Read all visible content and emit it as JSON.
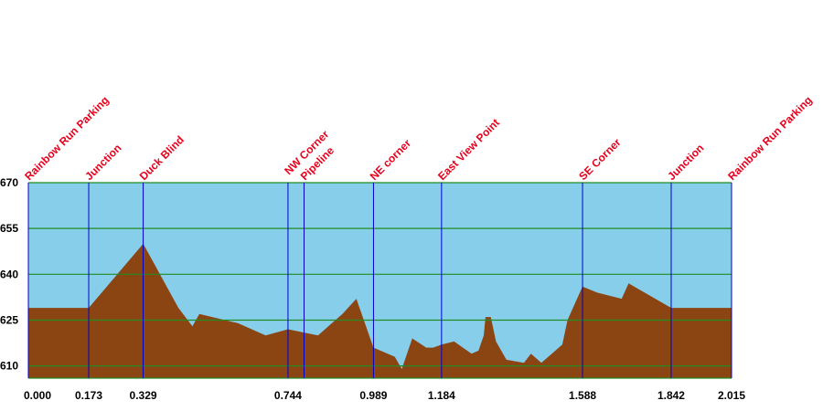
{
  "chart_data": {
    "type": "area",
    "title": "",
    "xlabel": "",
    "ylabel": "",
    "xlim": [
      0,
      2.015
    ],
    "ylim": [
      606,
      670
    ],
    "x_ticks": [
      "0.000",
      "0.173",
      "0.329",
      "0.744",
      "0.989",
      "1.184",
      "1.588",
      "1.842",
      "2.015"
    ],
    "y_ticks": [
      "670",
      "655",
      "640",
      "625",
      "610"
    ],
    "grid": "horizontal",
    "colors": {
      "sky": "#87ceeb",
      "terrain": "#8b4513",
      "gridline": "#228b22",
      "waypoint_line": "#0000cc",
      "waypoint_label": "#e8001c"
    },
    "waypoints": [
      {
        "name": "Rainbow Run Parking",
        "x": 0.0
      },
      {
        "name": "Junction",
        "x": 0.173
      },
      {
        "name": "Duck Blind",
        "x": 0.329
      },
      {
        "name": "NW Corner",
        "x": 0.744
      },
      {
        "name": "Pipeline",
        "x": 0.79
      },
      {
        "name": "NE corner",
        "x": 0.989
      },
      {
        "name": "East View Point",
        "x": 1.184
      },
      {
        "name": "SE Corner",
        "x": 1.588
      },
      {
        "name": "Junction",
        "x": 1.842
      },
      {
        "name": "Rainbow Run Parking",
        "x": 2.015
      }
    ],
    "series": [
      {
        "x": [
          0.0,
          0.173,
          0.329,
          0.43,
          0.47,
          0.49,
          0.6,
          0.68,
          0.744,
          0.83,
          0.87,
          0.9,
          0.94,
          0.989,
          1.05,
          1.07,
          1.1,
          1.14,
          1.16,
          1.184,
          1.22,
          1.27,
          1.29,
          1.305,
          1.31,
          1.325,
          1.34,
          1.37,
          1.42,
          1.44,
          1.47,
          1.5,
          1.53,
          1.545,
          1.588,
          1.63,
          1.7,
          1.72,
          1.842,
          2.015
        ],
        "y": [
          629,
          629,
          650,
          629,
          623,
          627,
          624,
          620,
          622,
          620,
          624,
          627,
          632,
          616,
          613,
          609,
          619,
          616,
          616,
          617,
          618,
          614,
          615,
          620,
          626,
          626,
          618,
          612,
          611,
          614,
          611,
          614,
          617,
          625,
          636,
          634,
          632,
          637,
          629,
          629
        ]
      }
    ]
  }
}
